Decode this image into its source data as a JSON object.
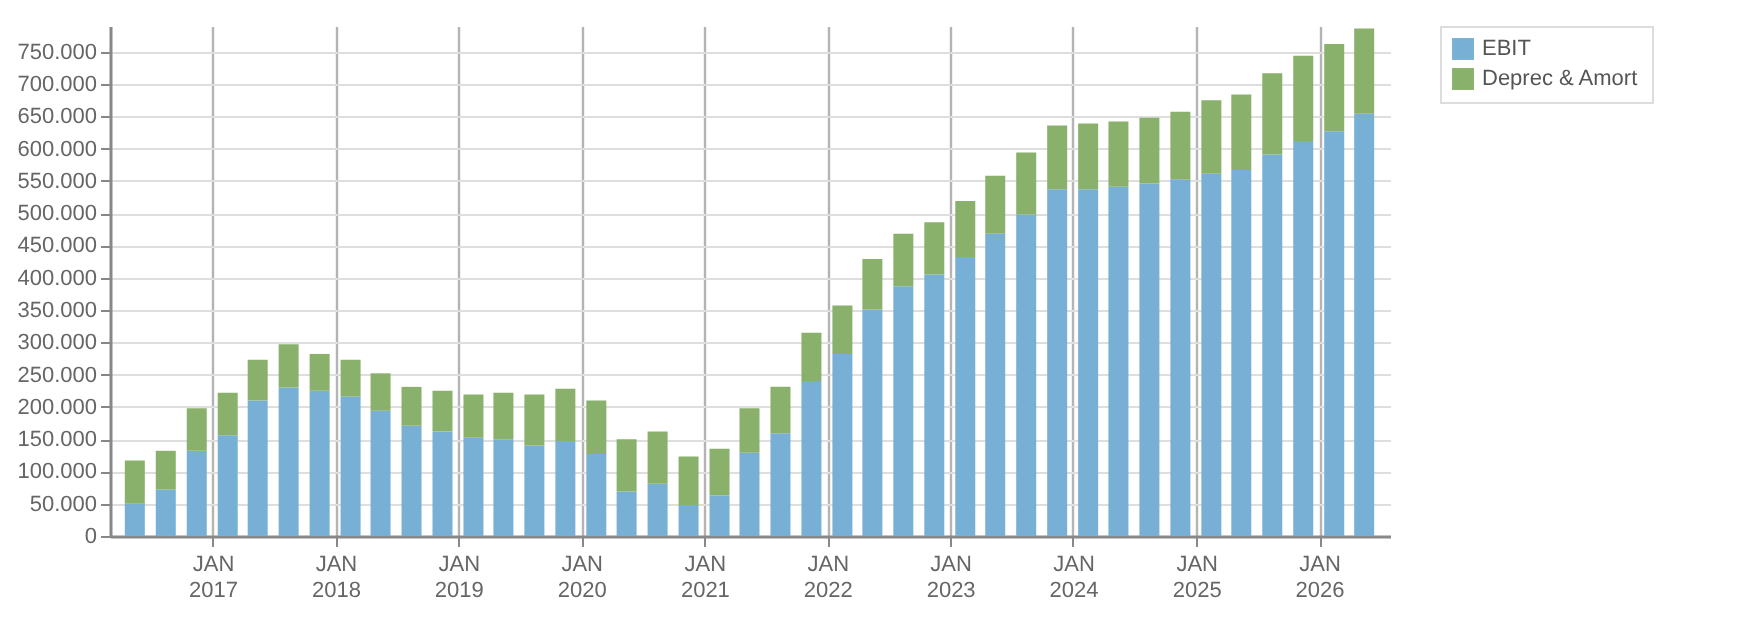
{
  "chart_data": {
    "type": "bar",
    "stacked": true,
    "x": [
      "2016-05-15",
      "2016-08-15",
      "2016-11-15",
      "2017-02-15",
      "2017-05-15",
      "2017-08-15",
      "2017-11-15",
      "2018-02-15",
      "2018-05-15",
      "2018-08-15",
      "2018-11-15",
      "2019-02-15",
      "2019-05-15",
      "2019-08-15",
      "2019-11-15",
      "2020-02-15",
      "2020-05-15",
      "2020-08-15",
      "2020-11-15",
      "2021-02-15",
      "2021-05-15",
      "2021-08-15",
      "2021-11-15",
      "2022-02-15",
      "2022-05-15",
      "2022-08-15",
      "2022-11-15",
      "2023-02-15",
      "2023-05-15",
      "2023-08-15",
      "2023-11-15",
      "2024-02-15",
      "2024-05-15",
      "2024-08-15",
      "2024-11-15",
      "2025-02-15",
      "2025-05-15",
      "2025-08-15",
      "2025-11-15",
      "2026-02-15",
      "2026-05-15"
    ],
    "series": [
      {
        "name": "EBIT",
        "color": "#77b0d4",
        "values": [
          50000,
          72000,
          132000,
          156000,
          210000,
          230000,
          225000,
          216000,
          194000,
          171000,
          162000,
          152000,
          150000,
          140000,
          147000,
          127000,
          69000,
          81000,
          48000,
          63000,
          129000,
          159000,
          240000,
          282000,
          351000,
          387000,
          405000,
          432000,
          468000,
          498000,
          537000,
          537000,
          541000,
          546000,
          552000,
          561000,
          567000,
          591000,
          612000,
          627000,
          654000
        ]
      },
      {
        "name": "Deprec & Amort",
        "color": "#8ab16b",
        "values": [
          67000,
          60000,
          66000,
          66000,
          63000,
          67000,
          57000,
          57000,
          58000,
          60000,
          63000,
          67000,
          72000,
          79000,
          81000,
          83000,
          81000,
          81000,
          75000,
          72000,
          69000,
          72000,
          75000,
          75000,
          78000,
          81000,
          81000,
          87000,
          90000,
          96000,
          99000,
          102000,
          101000,
          102000,
          105000,
          114000,
          117000,
          126000,
          132000,
          135000,
          132000
        ]
      }
    ],
    "xlim": [
      "2016-04-01",
      "2026-07-01"
    ],
    "xticks": [
      {
        "value": "2017-01-01",
        "label": "JAN\n2017"
      },
      {
        "value": "2018-01-01",
        "label": "JAN\n2018"
      },
      {
        "value": "2019-01-01",
        "label": "JAN\n2019"
      },
      {
        "value": "2020-01-01",
        "label": "JAN\n2020"
      },
      {
        "value": "2021-01-01",
        "label": "JAN\n2021"
      },
      {
        "value": "2022-01-01",
        "label": "JAN\n2022"
      },
      {
        "value": "2023-01-01",
        "label": "JAN\n2023"
      },
      {
        "value": "2024-01-01",
        "label": "JAN\n2024"
      },
      {
        "value": "2025-01-01",
        "label": "JAN\n2025"
      },
      {
        "value": "2026-01-01",
        "label": "JAN\n2026"
      }
    ],
    "ylim": [
      0,
      790000
    ],
    "yticks": [
      0,
      {
        "value": 50000,
        "label": "50.000"
      },
      {
        "value": 100000,
        "label": "100.000"
      },
      {
        "value": 150000,
        "label": "150.000"
      },
      {
        "value": 200000,
        "label": "200.000"
      },
      {
        "value": 250000,
        "label": "250.000"
      },
      {
        "value": 300000,
        "label": "300.000"
      },
      {
        "value": 350000,
        "label": "350.000"
      },
      {
        "value": 400000,
        "label": "400.000"
      },
      {
        "value": 450000,
        "label": "450.000"
      },
      {
        "value": 500000,
        "label": "500.000"
      },
      {
        "value": 550000,
        "label": "550.000"
      },
      {
        "value": 600000,
        "label": "600.000"
      },
      {
        "value": 650000,
        "label": "650.000"
      },
      {
        "value": 700000,
        "label": "700.000"
      },
      {
        "value": 750000,
        "label": "750.000"
      }
    ],
    "grid": true,
    "legend": "top right"
  }
}
